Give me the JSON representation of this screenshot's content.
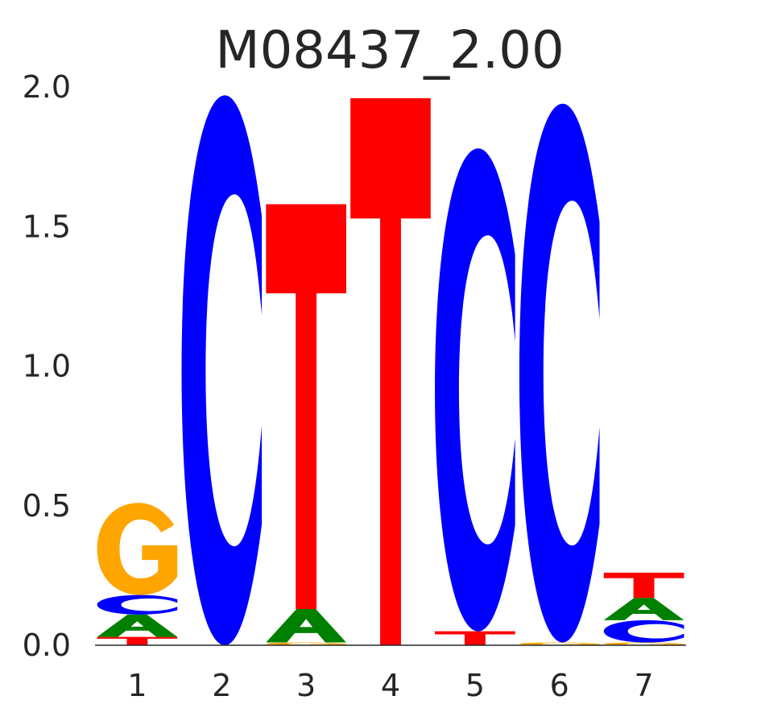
{
  "chart_data": {
    "type": "sequence-logo",
    "title": "M08437_2.00",
    "xlabel": "",
    "ylabel": "",
    "ylim": [
      0,
      2
    ],
    "y_ticks": [
      "0.0",
      "0.5",
      "1.0",
      "1.5",
      "2.0"
    ],
    "categories": [
      "1",
      "2",
      "3",
      "4",
      "5",
      "6",
      "7"
    ],
    "letter_colors": {
      "A": "#008000",
      "C": "#0000ff",
      "G": "#ffa500",
      "T": "#ff0000"
    },
    "positions": [
      {
        "position": "1",
        "letters": [
          {
            "base": "T",
            "height": 0.03
          },
          {
            "base": "A",
            "height": 0.08
          },
          {
            "base": "C",
            "height": 0.07
          },
          {
            "base": "G",
            "height": 0.33
          }
        ]
      },
      {
        "position": "2",
        "letters": [
          {
            "base": "C",
            "height": 1.97
          }
        ]
      },
      {
        "position": "3",
        "letters": [
          {
            "base": "G",
            "height": 0.01
          },
          {
            "base": "A",
            "height": 0.12
          },
          {
            "base": "T",
            "height": 1.45
          }
        ]
      },
      {
        "position": "4",
        "letters": [
          {
            "base": "T",
            "height": 1.96
          }
        ]
      },
      {
        "position": "5",
        "letters": [
          {
            "base": "T",
            "height": 0.05
          },
          {
            "base": "C",
            "height": 1.73
          }
        ]
      },
      {
        "position": "6",
        "letters": [
          {
            "base": "G",
            "height": 0.01
          },
          {
            "base": "C",
            "height": 1.93
          }
        ]
      },
      {
        "position": "7",
        "letters": [
          {
            "base": "G",
            "height": 0.01
          },
          {
            "base": "C",
            "height": 0.08
          },
          {
            "base": "A",
            "height": 0.08
          },
          {
            "base": "T",
            "height": 0.09
          }
        ]
      }
    ]
  }
}
